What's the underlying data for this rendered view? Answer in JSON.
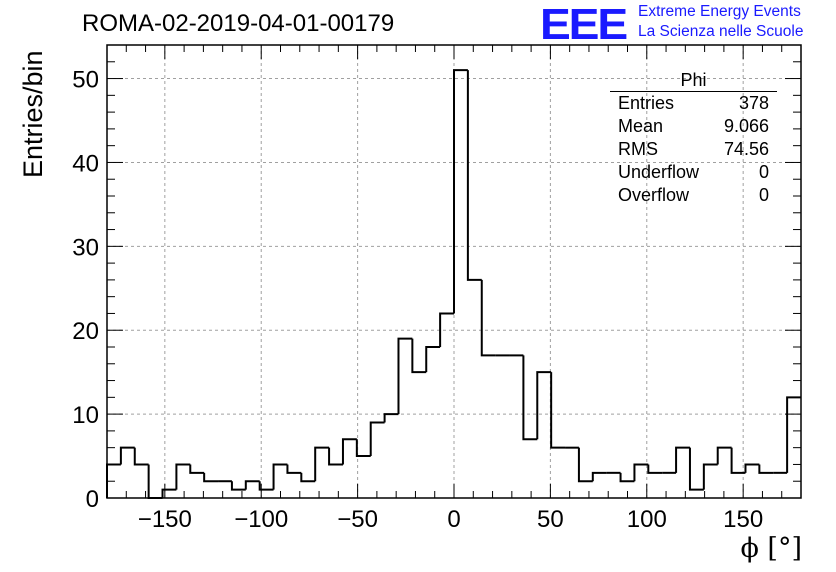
{
  "header": {
    "run_title": "ROMA-02-2019-04-01-00179",
    "logo_text": "EEE",
    "brand_line1": "Extreme Energy Events",
    "brand_line2": "La Scienza nelle Scuole"
  },
  "stats_box": {
    "title": "Phi",
    "rows": [
      {
        "label": "Entries",
        "value": "378"
      },
      {
        "label": "Mean",
        "value": "9.066"
      },
      {
        "label": "RMS",
        "value": "74.56"
      },
      {
        "label": "Underflow",
        "value": "0"
      },
      {
        "label": "Overflow",
        "value": "0"
      }
    ]
  },
  "colors": {
    "line": "#000000",
    "grid": "#a0a0a0",
    "brand": "#1a1aff",
    "background": "#ffffff"
  },
  "chart_data": {
    "type": "histogram",
    "xlabel": "ϕ [°]",
    "ylabel": "Entries/bin",
    "xlim": [
      -180,
      180
    ],
    "ylim": [
      0,
      54
    ],
    "bin_width": 7.2,
    "bin_edges_start": -180,
    "values": [
      4,
      6,
      4,
      0,
      1,
      4,
      3,
      2,
      2,
      1,
      2,
      1,
      4,
      3,
      2,
      6,
      4,
      7,
      5,
      9,
      10,
      19,
      15,
      18,
      22,
      51,
      26,
      17,
      17,
      17,
      7,
      15,
      6,
      6,
      2,
      3,
      3,
      2,
      4,
      3,
      3,
      6,
      1,
      4,
      6,
      3,
      4,
      3,
      3,
      12
    ],
    "x_ticks": [
      -150,
      -100,
      -50,
      0,
      50,
      100,
      150
    ],
    "x_tick_labels": [
      "−150",
      "−100",
      "−50",
      "0",
      "50",
      "100",
      "150"
    ],
    "y_ticks": [
      0,
      10,
      20,
      30,
      40,
      50
    ],
    "y_tick_labels": [
      "0",
      "10",
      "20",
      "30",
      "40",
      "50"
    ],
    "grid": true
  }
}
